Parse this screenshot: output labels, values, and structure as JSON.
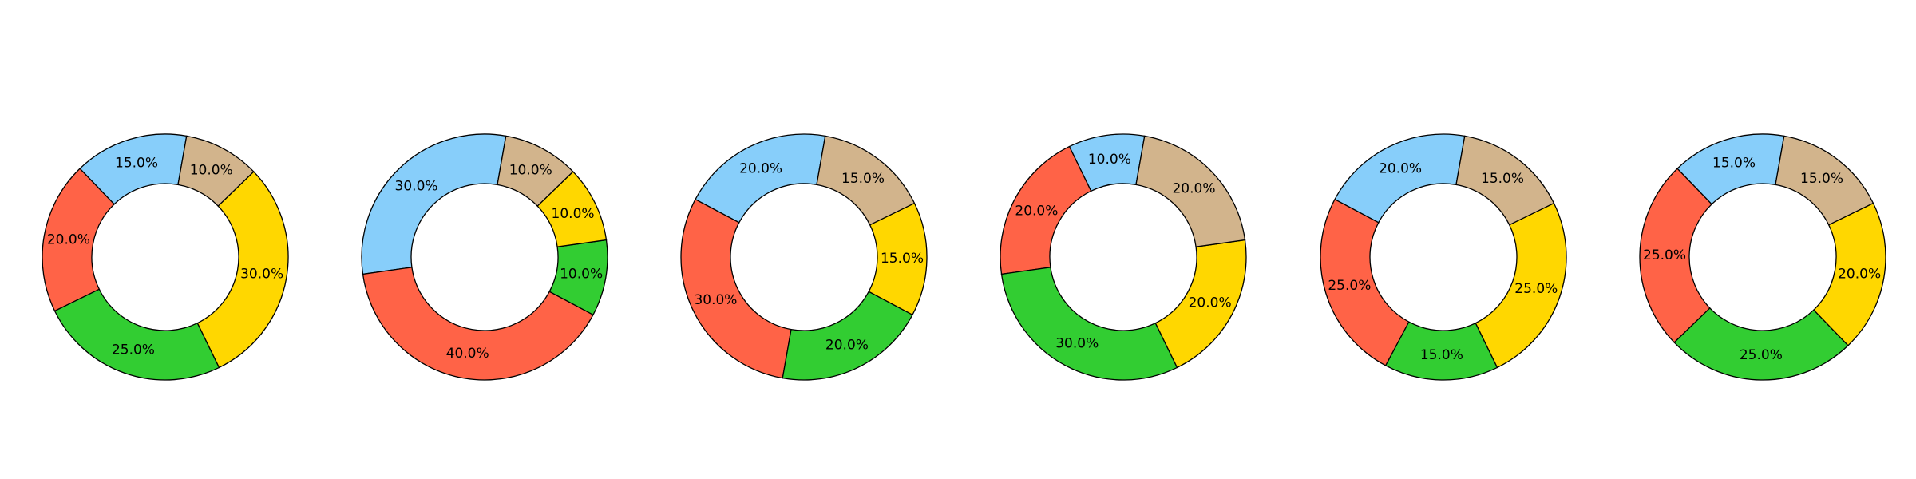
{
  "chart_data": [
    {
      "type": "pie",
      "categories": [
        "Sky Blue",
        "Tomato",
        "Lime Green",
        "Gold",
        "Tan"
      ],
      "values": [
        15.0,
        20.0,
        25.0,
        30.0,
        10.0
      ],
      "labels": [
        "15.0%",
        "20.0%",
        "25.0%",
        "30.0%",
        "10.0%"
      ],
      "title": "",
      "donut": true,
      "legend": "none"
    },
    {
      "type": "pie",
      "categories": [
        "Sky Blue",
        "Tomato",
        "Lime Green",
        "Gold",
        "Tan"
      ],
      "values": [
        30.0,
        40.0,
        10.0,
        10.0,
        10.0
      ],
      "labels": [
        "30.0%",
        "40.0%",
        "10.0%",
        "10.0%",
        "10.0%"
      ],
      "title": "",
      "donut": true,
      "legend": "none"
    },
    {
      "type": "pie",
      "categories": [
        "Sky Blue",
        "Tomato",
        "Lime Green",
        "Gold",
        "Tan"
      ],
      "values": [
        20.0,
        30.0,
        20.0,
        15.0,
        15.0
      ],
      "labels": [
        "20.0%",
        "30.0%",
        "20.0%",
        "15.0%",
        "15.0%"
      ],
      "title": "",
      "donut": true,
      "legend": "none"
    },
    {
      "type": "pie",
      "categories": [
        "Sky Blue",
        "Tomato",
        "Lime Green",
        "Gold",
        "Tan"
      ],
      "values": [
        10.0,
        20.0,
        30.0,
        20.0,
        20.0
      ],
      "labels": [
        "10.0%",
        "20.0%",
        "30.0%",
        "20.0%",
        "20.0%"
      ],
      "title": "",
      "donut": true,
      "legend": "none"
    },
    {
      "type": "pie",
      "categories": [
        "Sky Blue",
        "Tomato",
        "Lime Green",
        "Gold",
        "Tan"
      ],
      "values": [
        20.0,
        25.0,
        15.0,
        25.0,
        15.0
      ],
      "labels": [
        "20.0%",
        "25.0%",
        "15.0%",
        "25.0%",
        "15.0%"
      ],
      "title": "",
      "donut": true,
      "legend": "none"
    },
    {
      "type": "pie",
      "categories": [
        "Sky Blue",
        "Tomato",
        "Lime Green",
        "Gold",
        "Tan"
      ],
      "values": [
        15.0,
        25.0,
        25.0,
        20.0,
        15.0
      ],
      "labels": [
        "15.0%",
        "25.0%",
        "25.0%",
        "20.0%",
        "15.0%"
      ],
      "title": "",
      "donut": true,
      "legend": "none"
    }
  ],
  "colors": {
    "segments": [
      "#87CEFA",
      "#FF6347",
      "#32CD32",
      "#FFD700",
      "#D2B48C"
    ],
    "stroke": "#000000",
    "background": "#FFFFFF"
  }
}
